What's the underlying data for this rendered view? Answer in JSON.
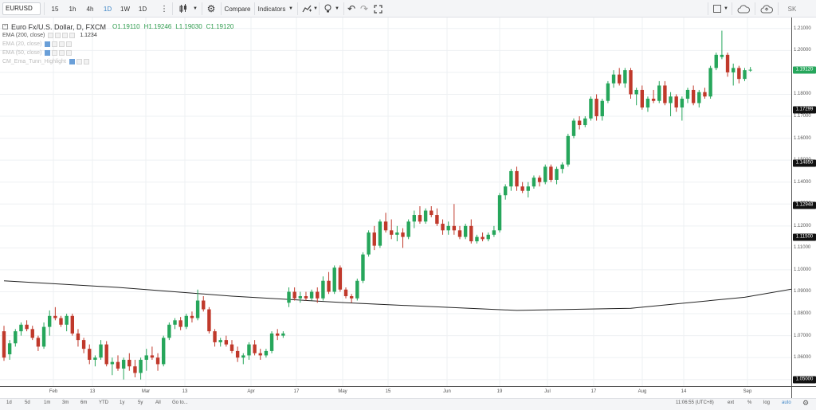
{
  "toolbar": {
    "symbol": "EURUSD",
    "intervals": [
      "15",
      "1h",
      "4h",
      "1D",
      "1W",
      "1D"
    ],
    "active_interval_index": 3,
    "compare_label": "Compare",
    "indicators_label": "Indicators",
    "right_button_label": "SK"
  },
  "legend": {
    "title": "Euro Fx/U.S. Dollar, D, FXCM",
    "open": "O1.19110",
    "high": "H1.19246",
    "low": "L1.19030",
    "close": "C1.19120",
    "indicators": [
      {
        "name": "EMA (200, close)",
        "value": "1.1234",
        "faded": false
      },
      {
        "name": "EMA (20, close)",
        "value": "",
        "faded": true
      },
      {
        "name": "EMA (50, close)",
        "value": "",
        "faded": true
      },
      {
        "name": "CM_Ema_Tunn_Highlight",
        "value": "",
        "faded": true
      }
    ]
  },
  "colors": {
    "up": "#26a65b",
    "down": "#c0392b",
    "ema": "#222222",
    "last_price_bg": "#26a65b",
    "price_label_bg": "#111111"
  },
  "price_scale": {
    "ticks": [
      "1.21000",
      "1.20000",
      "1.19000",
      "1.18000",
      "1.17000",
      "1.16000",
      "1.15000",
      "1.14000",
      "1.13000",
      "1.12000",
      "1.11000",
      "1.10000",
      "1.09000",
      "1.08000",
      "1.07000",
      "1.06000",
      "1.05000"
    ],
    "last_price_label": "1.19120",
    "level_labels": [
      "1.17299",
      "1.14850",
      "1.12948",
      "1.11500",
      "1.05000"
    ]
  },
  "time_axis": {
    "labels": [
      "Feb",
      "13",
      "Mar",
      "13",
      "Apr",
      "17",
      "May",
      "15",
      "Jun",
      "19",
      "Jul",
      "17",
      "Aug",
      "14",
      "Sep"
    ]
  },
  "bottom_bar": {
    "ranges": [
      "1d",
      "5d",
      "1m",
      "3m",
      "6m",
      "YTD",
      "1y",
      "5y",
      "All",
      "Go to..."
    ],
    "clock": "11:06:55 (UTC+8)",
    "options": [
      "ext",
      "%",
      "log",
      "auto"
    ]
  },
  "chart_data": {
    "type": "candlestick",
    "ylim": [
      1.047,
      1.215
    ],
    "candles": [
      {
        "o": 1.072,
        "h": 1.0745,
        "l": 1.0585,
        "c": 1.06
      },
      {
        "o": 1.0615,
        "h": 1.068,
        "l": 1.059,
        "c": 1.0665
      },
      {
        "o": 1.0665,
        "h": 1.073,
        "l": 1.065,
        "c": 1.072
      },
      {
        "o": 1.072,
        "h": 1.076,
        "l": 1.07,
        "c": 1.075
      },
      {
        "o": 1.075,
        "h": 1.077,
        "l": 1.072,
        "c": 1.073
      },
      {
        "o": 1.073,
        "h": 1.0745,
        "l": 1.068,
        "c": 1.069
      },
      {
        "o": 1.069,
        "h": 1.07,
        "l": 1.063,
        "c": 1.065
      },
      {
        "o": 1.065,
        "h": 1.076,
        "l": 1.064,
        "c": 1.074
      },
      {
        "o": 1.074,
        "h": 1.0815,
        "l": 1.07,
        "c": 1.079
      },
      {
        "o": 1.079,
        "h": 1.083,
        "l": 1.077,
        "c": 1.078
      },
      {
        "o": 1.078,
        "h": 1.079,
        "l": 1.074,
        "c": 1.075
      },
      {
        "o": 1.075,
        "h": 1.08,
        "l": 1.072,
        "c": 1.079
      },
      {
        "o": 1.079,
        "h": 1.08,
        "l": 1.07,
        "c": 1.071
      },
      {
        "o": 1.071,
        "h": 1.073,
        "l": 1.065,
        "c": 1.068
      },
      {
        "o": 1.068,
        "h": 1.069,
        "l": 1.062,
        "c": 1.064
      },
      {
        "o": 1.064,
        "h": 1.066,
        "l": 1.057,
        "c": 1.059
      },
      {
        "o": 1.059,
        "h": 1.061,
        "l": 1.056,
        "c": 1.06
      },
      {
        "o": 1.06,
        "h": 1.068,
        "l": 1.059,
        "c": 1.066
      },
      {
        "o": 1.066,
        "h": 1.0675,
        "l": 1.056,
        "c": 1.057
      },
      {
        "o": 1.057,
        "h": 1.06,
        "l": 1.052,
        "c": 1.058
      },
      {
        "o": 1.058,
        "h": 1.061,
        "l": 1.054,
        "c": 1.055
      },
      {
        "o": 1.055,
        "h": 1.06,
        "l": 1.05,
        "c": 1.059
      },
      {
        "o": 1.059,
        "h": 1.062,
        "l": 1.054,
        "c": 1.056
      },
      {
        "o": 1.056,
        "h": 1.059,
        "l": 1.051,
        "c": 1.053
      },
      {
        "o": 1.053,
        "h": 1.06,
        "l": 1.05,
        "c": 1.059
      },
      {
        "o": 1.059,
        "h": 1.064,
        "l": 1.054,
        "c": 1.061
      },
      {
        "o": 1.061,
        "h": 1.065,
        "l": 1.059,
        "c": 1.06
      },
      {
        "o": 1.06,
        "h": 1.062,
        "l": 1.054,
        "c": 1.057
      },
      {
        "o": 1.057,
        "h": 1.07,
        "l": 1.056,
        "c": 1.069
      },
      {
        "o": 1.069,
        "h": 1.076,
        "l": 1.068,
        "c": 1.075
      },
      {
        "o": 1.075,
        "h": 1.078,
        "l": 1.073,
        "c": 1.077
      },
      {
        "o": 1.077,
        "h": 1.0785,
        "l": 1.0725,
        "c": 1.074
      },
      {
        "o": 1.074,
        "h": 1.08,
        "l": 1.073,
        "c": 1.079
      },
      {
        "o": 1.079,
        "h": 1.081,
        "l": 1.076,
        "c": 1.078
      },
      {
        "o": 1.078,
        "h": 1.091,
        "l": 1.077,
        "c": 1.086
      },
      {
        "o": 1.086,
        "h": 1.088,
        "l": 1.081,
        "c": 1.082
      },
      {
        "o": 1.082,
        "h": 1.083,
        "l": 1.071,
        "c": 1.072
      },
      {
        "o": 1.072,
        "h": 1.073,
        "l": 1.065,
        "c": 1.067
      },
      {
        "o": 1.067,
        "h": 1.069,
        "l": 1.065,
        "c": 1.068
      },
      {
        "o": 1.068,
        "h": 1.07,
        "l": 1.065,
        "c": 1.066
      },
      {
        "o": 1.066,
        "h": 1.068,
        "l": 1.062,
        "c": 1.063
      },
      {
        "o": 1.063,
        "h": 1.065,
        "l": 1.058,
        "c": 1.06
      },
      {
        "o": 1.06,
        "h": 1.062,
        "l": 1.057,
        "c": 1.061
      },
      {
        "o": 1.061,
        "h": 1.067,
        "l": 1.059,
        "c": 1.066
      },
      {
        "o": 1.066,
        "h": 1.068,
        "l": 1.061,
        "c": 1.062
      },
      {
        "o": 1.062,
        "h": 1.064,
        "l": 1.059,
        "c": 1.061
      },
      {
        "o": 1.061,
        "h": 1.064,
        "l": 1.06,
        "c": 1.063
      },
      {
        "o": 1.063,
        "h": 1.072,
        "l": 1.062,
        "c": 1.071
      },
      {
        "o": 1.071,
        "h": 1.073,
        "l": 1.068,
        "c": 1.07
      },
      {
        "o": 1.07,
        "h": 1.072,
        "l": 1.069,
        "c": 1.071
      },
      {
        "o": 1.085,
        "h": 1.092,
        "l": 1.083,
        "c": 1.09
      },
      {
        "o": 1.09,
        "h": 1.092,
        "l": 1.086,
        "c": 1.087
      },
      {
        "o": 1.087,
        "h": 1.09,
        "l": 1.085,
        "c": 1.088
      },
      {
        "o": 1.088,
        "h": 1.09,
        "l": 1.086,
        "c": 1.087
      },
      {
        "o": 1.087,
        "h": 1.091,
        "l": 1.086,
        "c": 1.09
      },
      {
        "o": 1.09,
        "h": 1.092,
        "l": 1.085,
        "c": 1.087
      },
      {
        "o": 1.087,
        "h": 1.097,
        "l": 1.086,
        "c": 1.095
      },
      {
        "o": 1.095,
        "h": 1.099,
        "l": 1.089,
        "c": 1.09
      },
      {
        "o": 1.09,
        "h": 1.102,
        "l": 1.089,
        "c": 1.101
      },
      {
        "o": 1.101,
        "h": 1.102,
        "l": 1.09,
        "c": 1.091
      },
      {
        "o": 1.091,
        "h": 1.092,
        "l": 1.087,
        "c": 1.088
      },
      {
        "o": 1.088,
        "h": 1.089,
        "l": 1.085,
        "c": 1.087
      },
      {
        "o": 1.087,
        "h": 1.096,
        "l": 1.086,
        "c": 1.095
      },
      {
        "o": 1.095,
        "h": 1.108,
        "l": 1.094,
        "c": 1.107
      },
      {
        "o": 1.107,
        "h": 1.118,
        "l": 1.106,
        "c": 1.117
      },
      {
        "o": 1.117,
        "h": 1.12,
        "l": 1.109,
        "c": 1.111
      },
      {
        "o": 1.111,
        "h": 1.123,
        "l": 1.11,
        "c": 1.122
      },
      {
        "o": 1.122,
        "h": 1.126,
        "l": 1.117,
        "c": 1.118
      },
      {
        "o": 1.118,
        "h": 1.123,
        "l": 1.114,
        "c": 1.116
      },
      {
        "o": 1.116,
        "h": 1.12,
        "l": 1.113,
        "c": 1.117
      },
      {
        "o": 1.117,
        "h": 1.119,
        "l": 1.11,
        "c": 1.115
      },
      {
        "o": 1.115,
        "h": 1.123,
        "l": 1.114,
        "c": 1.122
      },
      {
        "o": 1.122,
        "h": 1.127,
        "l": 1.119,
        "c": 1.125
      },
      {
        "o": 1.125,
        "h": 1.129,
        "l": 1.121,
        "c": 1.122
      },
      {
        "o": 1.122,
        "h": 1.128,
        "l": 1.121,
        "c": 1.127
      },
      {
        "o": 1.127,
        "h": 1.129,
        "l": 1.124,
        "c": 1.125
      },
      {
        "o": 1.125,
        "h": 1.128,
        "l": 1.12,
        "c": 1.121
      },
      {
        "o": 1.121,
        "h": 1.123,
        "l": 1.116,
        "c": 1.118
      },
      {
        "o": 1.118,
        "h": 1.122,
        "l": 1.116,
        "c": 1.12
      },
      {
        "o": 1.12,
        "h": 1.13,
        "l": 1.116,
        "c": 1.118
      },
      {
        "o": 1.118,
        "h": 1.12,
        "l": 1.114,
        "c": 1.115
      },
      {
        "o": 1.115,
        "h": 1.121,
        "l": 1.114,
        "c": 1.12
      },
      {
        "o": 1.12,
        "h": 1.123,
        "l": 1.112,
        "c": 1.113
      },
      {
        "o": 1.113,
        "h": 1.116,
        "l": 1.112,
        "c": 1.115
      },
      {
        "o": 1.115,
        "h": 1.117,
        "l": 1.113,
        "c": 1.114
      },
      {
        "o": 1.114,
        "h": 1.117,
        "l": 1.113,
        "c": 1.116
      },
      {
        "o": 1.116,
        "h": 1.12,
        "l": 1.115,
        "c": 1.118
      },
      {
        "o": 1.118,
        "h": 1.135,
        "l": 1.117,
        "c": 1.134
      },
      {
        "o": 1.134,
        "h": 1.139,
        "l": 1.132,
        "c": 1.138
      },
      {
        "o": 1.138,
        "h": 1.146,
        "l": 1.136,
        "c": 1.145
      },
      {
        "o": 1.145,
        "h": 1.147,
        "l": 1.136,
        "c": 1.138
      },
      {
        "o": 1.138,
        "h": 1.14,
        "l": 1.135,
        "c": 1.136
      },
      {
        "o": 1.136,
        "h": 1.14,
        "l": 1.133,
        "c": 1.138
      },
      {
        "o": 1.138,
        "h": 1.143,
        "l": 1.137,
        "c": 1.142
      },
      {
        "o": 1.142,
        "h": 1.143,
        "l": 1.138,
        "c": 1.14
      },
      {
        "o": 1.14,
        "h": 1.148,
        "l": 1.139,
        "c": 1.147
      },
      {
        "o": 1.147,
        "h": 1.148,
        "l": 1.14,
        "c": 1.141
      },
      {
        "o": 1.141,
        "h": 1.147,
        "l": 1.139,
        "c": 1.146
      },
      {
        "o": 1.146,
        "h": 1.149,
        "l": 1.144,
        "c": 1.148
      },
      {
        "o": 1.148,
        "h": 1.162,
        "l": 1.147,
        "c": 1.161
      },
      {
        "o": 1.161,
        "h": 1.169,
        "l": 1.16,
        "c": 1.168
      },
      {
        "o": 1.168,
        "h": 1.17,
        "l": 1.164,
        "c": 1.166
      },
      {
        "o": 1.166,
        "h": 1.17,
        "l": 1.165,
        "c": 1.169
      },
      {
        "o": 1.169,
        "h": 1.179,
        "l": 1.168,
        "c": 1.178
      },
      {
        "o": 1.178,
        "h": 1.18,
        "l": 1.168,
        "c": 1.17
      },
      {
        "o": 1.17,
        "h": 1.178,
        "l": 1.168,
        "c": 1.177
      },
      {
        "o": 1.177,
        "h": 1.186,
        "l": 1.176,
        "c": 1.185
      },
      {
        "o": 1.185,
        "h": 1.191,
        "l": 1.183,
        "c": 1.189
      },
      {
        "o": 1.189,
        "h": 1.192,
        "l": 1.184,
        "c": 1.185
      },
      {
        "o": 1.185,
        "h": 1.192,
        "l": 1.183,
        "c": 1.191
      },
      {
        "o": 1.191,
        "h": 1.192,
        "l": 1.178,
        "c": 1.18
      },
      {
        "o": 1.18,
        "h": 1.183,
        "l": 1.175,
        "c": 1.182
      },
      {
        "o": 1.182,
        "h": 1.184,
        "l": 1.173,
        "c": 1.174
      },
      {
        "o": 1.174,
        "h": 1.179,
        "l": 1.172,
        "c": 1.178
      },
      {
        "o": 1.178,
        "h": 1.182,
        "l": 1.176,
        "c": 1.177
      },
      {
        "o": 1.177,
        "h": 1.186,
        "l": 1.176,
        "c": 1.184
      },
      {
        "o": 1.184,
        "h": 1.186,
        "l": 1.175,
        "c": 1.176
      },
      {
        "o": 1.176,
        "h": 1.181,
        "l": 1.17,
        "c": 1.179
      },
      {
        "o": 1.179,
        "h": 1.18,
        "l": 1.172,
        "c": 1.174
      },
      {
        "o": 1.174,
        "h": 1.179,
        "l": 1.168,
        "c": 1.178
      },
      {
        "o": 1.178,
        "h": 1.183,
        "l": 1.176,
        "c": 1.182
      },
      {
        "o": 1.182,
        "h": 1.184,
        "l": 1.175,
        "c": 1.176
      },
      {
        "o": 1.176,
        "h": 1.182,
        "l": 1.174,
        "c": 1.181
      },
      {
        "o": 1.181,
        "h": 1.183,
        "l": 1.178,
        "c": 1.179
      },
      {
        "o": 1.179,
        "h": 1.193,
        "l": 1.178,
        "c": 1.192
      },
      {
        "o": 1.192,
        "h": 1.199,
        "l": 1.191,
        "c": 1.198
      },
      {
        "o": 1.197,
        "h": 1.209,
        "l": 1.196,
        "c": 1.198
      },
      {
        "o": 1.198,
        "h": 1.199,
        "l": 1.188,
        "c": 1.19
      },
      {
        "o": 1.19,
        "h": 1.194,
        "l": 1.184,
        "c": 1.192
      },
      {
        "o": 1.192,
        "h": 1.193,
        "l": 1.185,
        "c": 1.187
      },
      {
        "o": 1.187,
        "h": 1.192,
        "l": 1.186,
        "c": 1.191
      },
      {
        "o": 1.1911,
        "h": 1.19246,
        "l": 1.1903,
        "c": 1.1912
      }
    ],
    "ema200": [
      [
        0,
        1.095
      ],
      [
        20,
        1.092
      ],
      [
        40,
        1.088
      ],
      [
        60,
        1.085
      ],
      [
        77,
        1.083
      ],
      [
        90,
        1.0815
      ],
      [
        110,
        1.0825
      ],
      [
        130,
        1.0875
      ],
      [
        150,
        1.0965
      ],
      [
        170,
        1.108
      ],
      [
        185,
        1.119
      ],
      [
        200,
        1.1234
      ]
    ],
    "level_lines": [
      1.17299,
      1.1485,
      1.12948,
      1.115,
      1.05
    ]
  }
}
